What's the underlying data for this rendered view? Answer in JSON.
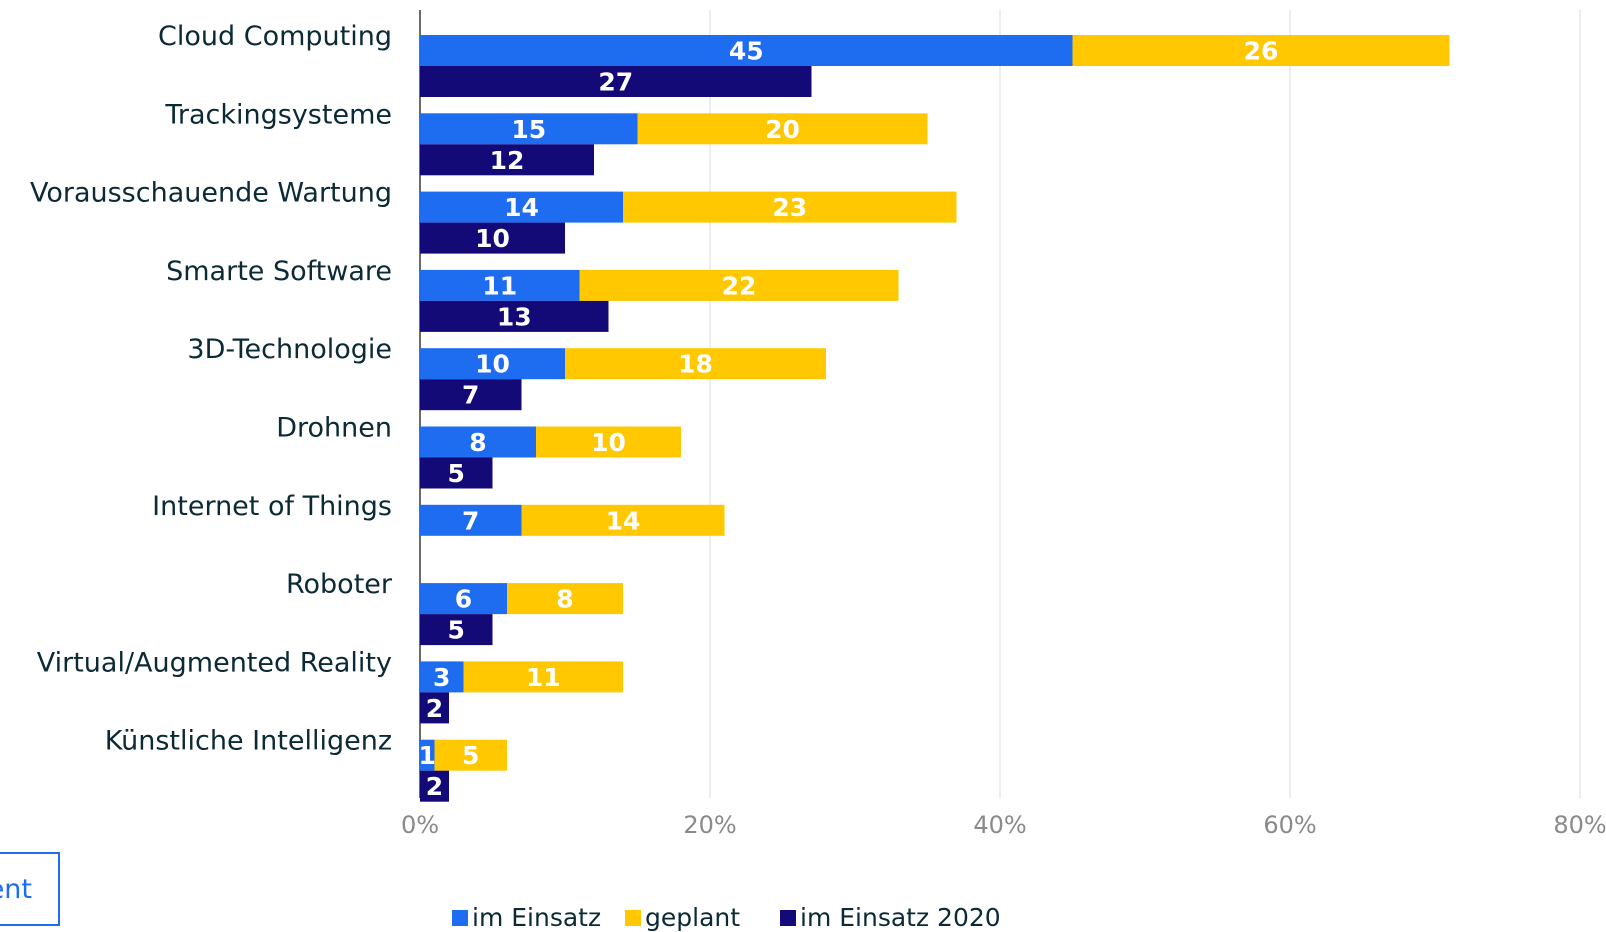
{
  "chart_data": {
    "type": "bar",
    "orientation": "horizontal",
    "stacked": true,
    "categories": [
      "Cloud Computing",
      "Trackingsysteme",
      "Vorausschauende Wartung",
      "Smarte Software",
      "3D-Technologie",
      "Drohnen",
      "Internet of Things",
      "Roboter",
      "Virtual/Augmented Reality",
      "Künstliche Intelligenz"
    ],
    "series": [
      {
        "name": "im Einsatz",
        "color": "#1e6cf0",
        "stack": "a",
        "values": [
          45,
          15,
          14,
          11,
          10,
          8,
          7,
          6,
          3,
          1
        ]
      },
      {
        "name": "geplant",
        "color": "#ffc800",
        "stack": "a",
        "values": [
          26,
          20,
          23,
          22,
          18,
          10,
          14,
          8,
          11,
          5
        ]
      },
      {
        "name": "im Einsatz 2020",
        "color": "#130a78",
        "stack": "b",
        "values": [
          27,
          12,
          10,
          13,
          7,
          5,
          null,
          5,
          2,
          2
        ]
      }
    ],
    "xlim": [
      0,
      80
    ],
    "xticks": [
      "0%",
      "20%",
      "40%",
      "60%",
      "80%"
    ],
    "xtick_values": [
      0,
      20,
      40,
      60,
      80
    ],
    "grid": true,
    "legend_position": "bottom"
  },
  "side_button": {
    "label": "ent"
  }
}
